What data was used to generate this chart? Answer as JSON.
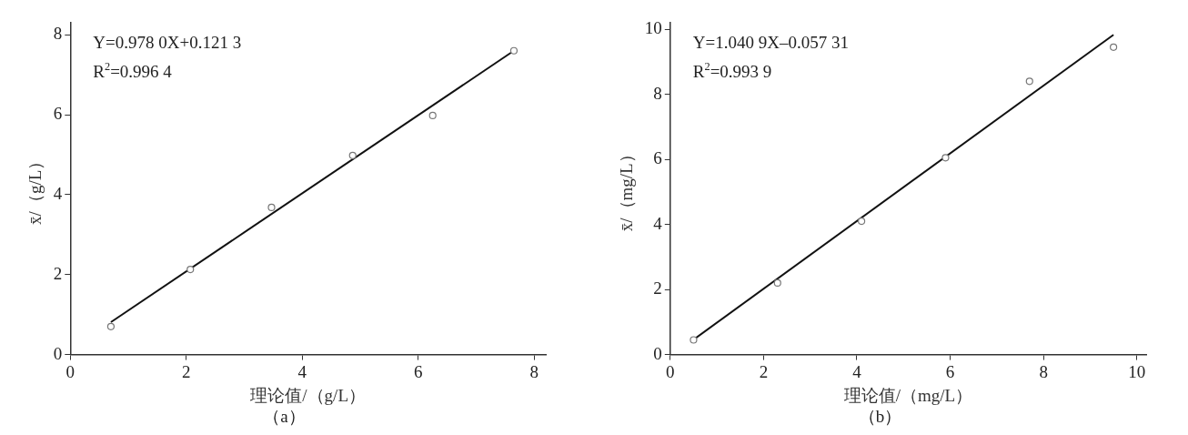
{
  "chart_data": [
    {
      "type": "scatter",
      "title": "（a）",
      "xlabel": "理论值/（g/L）",
      "ylabel": "x̄/（g/L）",
      "annotations": [
        "Y=0.978 0X+0.121 3",
        "R$^{2}$=0.996 4"
      ],
      "x": [
        0.7,
        2.07,
        3.47,
        4.87,
        6.25,
        7.65
      ],
      "series": [
        {
          "color": "#777777",
          "marker": "circle",
          "values": [
            0.7,
            2.13,
            3.68,
            4.98,
            5.98,
            7.6
          ]
        },
        {
          "type": "line",
          "color": "#111111",
          "marker": "none",
          "x": [
            0.7,
            7.65
          ],
          "values": [
            0.81,
            7.6
          ]
        }
      ],
      "xlim": [
        0,
        8.2
      ],
      "xticks": [
        0,
        2,
        4,
        6,
        8
      ],
      "ylim": [
        0,
        8.3
      ],
      "yticks": [
        0,
        2,
        4,
        6,
        8
      ],
      "grid": false,
      "legend": false
    },
    {
      "type": "scatter",
      "title": "（b）",
      "xlabel": "理论值/（mg/L）",
      "ylabel": "x̄/（mg/L）",
      "annotations": [
        "Y=1.040 9X–0.057 31",
        "R$^{2}$=0.993 9"
      ],
      "x": [
        0.5,
        2.3,
        4.1,
        5.9,
        7.7,
        9.5
      ],
      "series": [
        {
          "color": "#777777",
          "marker": "circle",
          "values": [
            0.45,
            2.2,
            4.1,
            6.05,
            8.4,
            9.45
          ]
        },
        {
          "type": "line",
          "color": "#111111",
          "marker": "none",
          "x": [
            0.5,
            9.5
          ],
          "values": [
            0.46,
            9.83
          ]
        }
      ],
      "xlim": [
        0,
        10.2
      ],
      "xticks": [
        0,
        2,
        4,
        6,
        8,
        10
      ],
      "ylim": [
        0,
        10.2
      ],
      "yticks": [
        0,
        2,
        4,
        6,
        8,
        10
      ],
      "grid": false,
      "legend": false
    }
  ]
}
